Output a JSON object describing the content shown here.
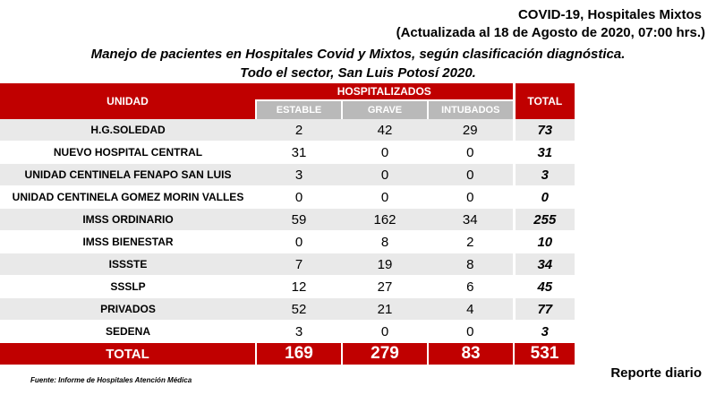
{
  "header": {
    "title": "COVID-19, Hospitales Mixtos",
    "updated": "(Actualizada al 18 de Agosto de 2020, 07:00 hrs.)",
    "subtitle1": "Manejo de pacientes en Hospitales Covid y Mixtos, según clasificación diagnóstica.",
    "subtitle2": "Todo el sector, San Luis Potosí 2020."
  },
  "table": {
    "col_unidad": "UNIDAD",
    "col_hosp": "HOSPITALIZADOS",
    "col_total": "TOTAL",
    "sub_estable": "ESTABLE",
    "sub_grave": "GRAVE",
    "sub_intubados": "INTUBADOS",
    "rows": [
      {
        "unidad": "H.G.SOLEDAD",
        "estable": "2",
        "grave": "42",
        "intubados": "29",
        "total": "73"
      },
      {
        "unidad": "NUEVO HOSPITAL CENTRAL",
        "estable": "31",
        "grave": "0",
        "intubados": "0",
        "total": "31"
      },
      {
        "unidad": "UNIDAD CENTINELA FENAPO SAN LUIS",
        "estable": "3",
        "grave": "0",
        "intubados": "0",
        "total": "3"
      },
      {
        "unidad": "UNIDAD CENTINELA GOMEZ MORIN VALLES",
        "estable": "0",
        "grave": "0",
        "intubados": "0",
        "total": "0"
      },
      {
        "unidad": "IMSS ORDINARIO",
        "estable": "59",
        "grave": "162",
        "intubados": "34",
        "total": "255"
      },
      {
        "unidad": "IMSS BIENESTAR",
        "estable": "0",
        "grave": "8",
        "intubados": "2",
        "total": "10"
      },
      {
        "unidad": "ISSSTE",
        "estable": "7",
        "grave": "19",
        "intubados": "8",
        "total": "34"
      },
      {
        "unidad": "SSSLP",
        "estable": "12",
        "grave": "27",
        "intubados": "6",
        "total": "45"
      },
      {
        "unidad": "PRIVADOS",
        "estable": "52",
        "grave": "21",
        "intubados": "4",
        "total": "77"
      },
      {
        "unidad": "SEDENA",
        "estable": "3",
        "grave": "0",
        "intubados": "0",
        "total": "3"
      }
    ],
    "footer": {
      "label": "TOTAL",
      "estable": "169",
      "grave": "279",
      "intubados": "83",
      "total": "531"
    }
  },
  "colors": {
    "header_red": "#c00000",
    "subheader_gray": "#b9b9b9",
    "row_alt": "#e9e9e9"
  },
  "source": "Fuente: Informe de Hospitales Atención Médica",
  "report": "Reporte diario"
}
